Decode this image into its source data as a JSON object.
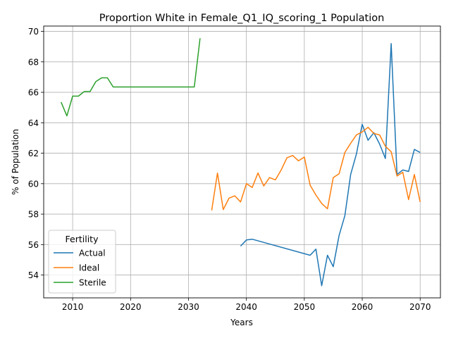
{
  "chart_data": {
    "type": "line",
    "title": "Proportion White in Female_Q1_IQ_scoring_1 Population",
    "xlabel": "Years",
    "ylabel": "% of Population",
    "xlim": [
      2005,
      2073.5
    ],
    "ylim": [
      52.5,
      70.35
    ],
    "xticks": [
      2010,
      2020,
      2030,
      2040,
      2050,
      2060,
      2070
    ],
    "yticks": [
      54,
      56,
      58,
      60,
      62,
      64,
      66,
      68,
      70
    ],
    "grid": true,
    "legend": {
      "title": "Fertility",
      "placement": "lower-left"
    },
    "series": [
      {
        "name": "Actual",
        "color": "#1f77b4",
        "points": [
          [
            2039,
            55.9
          ],
          [
            2040,
            56.3
          ],
          [
            2041,
            56.35
          ],
          [
            2051,
            55.3
          ],
          [
            2052,
            55.7
          ],
          [
            2053,
            53.3
          ],
          [
            2054,
            55.3
          ],
          [
            2055,
            54.55
          ],
          [
            2056,
            56.6
          ],
          [
            2057,
            57.9
          ],
          [
            2058,
            60.6
          ],
          [
            2059,
            61.95
          ],
          [
            2060,
            63.9
          ],
          [
            2061,
            62.85
          ],
          [
            2062,
            63.35
          ],
          [
            2063,
            62.6
          ],
          [
            2064,
            61.65
          ],
          [
            2065,
            69.2
          ],
          [
            2066,
            60.6
          ],
          [
            2067,
            60.9
          ],
          [
            2068,
            60.8
          ],
          [
            2069,
            62.25
          ],
          [
            2070,
            62.05
          ]
        ]
      },
      {
        "name": "Ideal",
        "color": "#ff7f0e",
        "points": [
          [
            2034,
            58.25
          ],
          [
            2035,
            60.7
          ],
          [
            2036,
            58.3
          ],
          [
            2037,
            59.05
          ],
          [
            2038,
            59.2
          ],
          [
            2039,
            58.8
          ],
          [
            2040,
            60.0
          ],
          [
            2041,
            59.75
          ],
          [
            2042,
            60.7
          ],
          [
            2043,
            59.85
          ],
          [
            2044,
            60.4
          ],
          [
            2045,
            60.25
          ],
          [
            2046,
            60.9
          ],
          [
            2047,
            61.7
          ],
          [
            2048,
            61.85
          ],
          [
            2049,
            61.5
          ],
          [
            2050,
            61.75
          ],
          [
            2051,
            59.9
          ],
          [
            2052,
            59.25
          ],
          [
            2053,
            58.7
          ],
          [
            2054,
            58.35
          ],
          [
            2055,
            60.4
          ],
          [
            2056,
            60.65
          ],
          [
            2057,
            62.05
          ],
          [
            2058,
            62.65
          ],
          [
            2059,
            63.2
          ],
          [
            2060,
            63.4
          ],
          [
            2061,
            63.7
          ],
          [
            2062,
            63.3
          ],
          [
            2063,
            63.2
          ],
          [
            2064,
            62.45
          ],
          [
            2065,
            62.1
          ],
          [
            2066,
            60.5
          ],
          [
            2067,
            60.75
          ],
          [
            2068,
            58.95
          ],
          [
            2069,
            60.6
          ],
          [
            2070,
            58.8
          ]
        ]
      },
      {
        "name": "Sterile",
        "color": "#2ca02c",
        "points": [
          [
            2008,
            65.35
          ],
          [
            2009,
            64.45
          ],
          [
            2010,
            65.75
          ],
          [
            2011,
            65.75
          ],
          [
            2012,
            66.05
          ],
          [
            2013,
            66.05
          ],
          [
            2014,
            66.7
          ],
          [
            2015,
            66.95
          ],
          [
            2016,
            66.95
          ],
          [
            2017,
            66.35
          ],
          [
            2031,
            66.35
          ],
          [
            2032,
            69.55
          ]
        ]
      }
    ]
  }
}
